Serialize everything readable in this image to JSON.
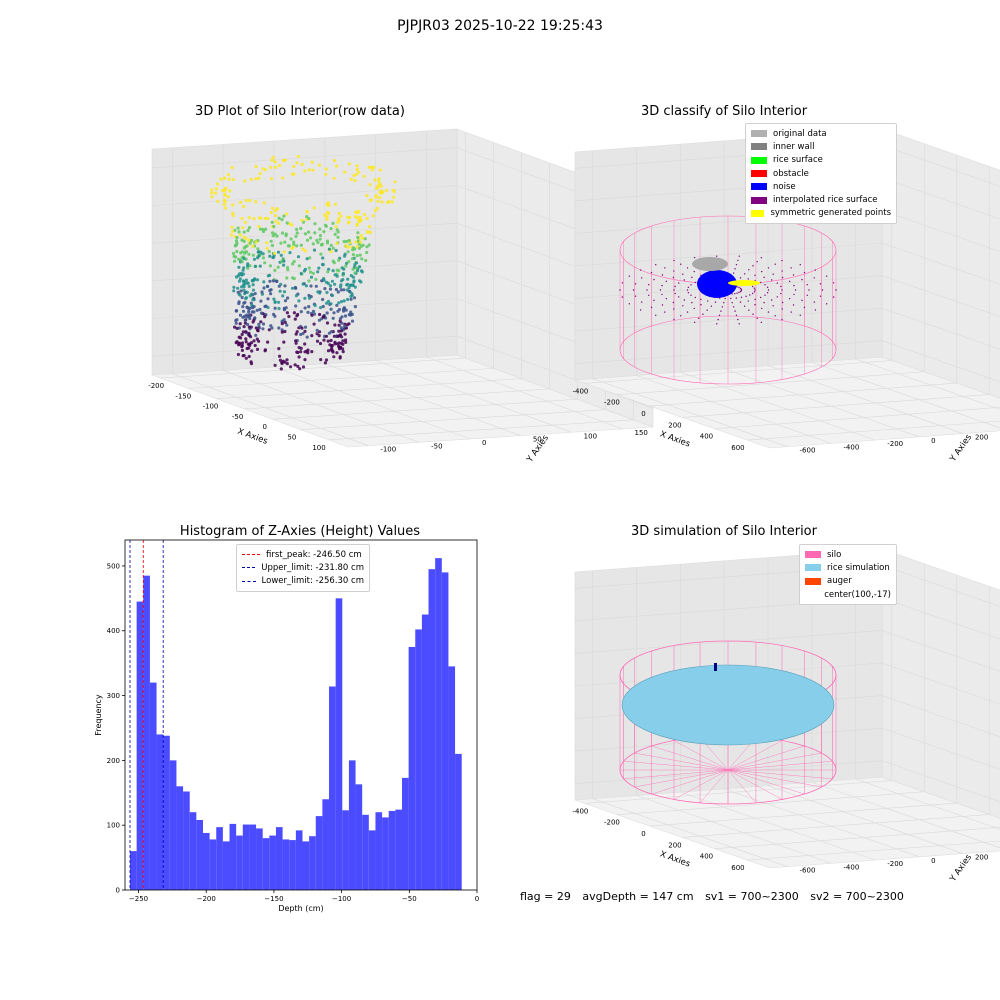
{
  "suptitle": "PJPJR03 2025-10-22 19:25:43",
  "chart_data": [
    {
      "type": "scatter",
      "title": "3D Plot of Silo Interior(row data)",
      "xlabel": "X Axies",
      "ylabel": "Y Axies",
      "zlabel": "Z Axies (Depth)",
      "xticks": [
        "-200",
        "-150",
        "-100",
        "-50",
        "0",
        "50",
        "100"
      ],
      "yticks": [
        "-100",
        "-50",
        "0",
        "50",
        "100",
        "150"
      ],
      "zticks": [
        "0",
        "-50",
        "-100",
        "-150",
        "-200",
        "-250"
      ],
      "xlim": [
        -200,
        120
      ],
      "ylim": [
        -120,
        160
      ],
      "zlim": [
        -270,
        0
      ],
      "colormap": "viridis",
      "colors": [
        "#440154",
        "#3b528b",
        "#21918c",
        "#5ec962",
        "#fde725"
      ]
    },
    {
      "type": "scatter",
      "title": "3D classify of Silo Interior",
      "xlabel": "X Axies",
      "ylabel": "Y Axies",
      "zlabel": "Z Axies (Depth)",
      "xticks": [
        "-400",
        "-200",
        "0",
        "200",
        "400",
        "600"
      ],
      "yticks": [
        "-600",
        "-400",
        "-200",
        "0",
        "200",
        "400",
        "600"
      ],
      "zticks": [
        "400",
        "200",
        "0",
        "-200",
        "-400",
        "-600",
        "-800"
      ],
      "legend": [
        {
          "name": "original data",
          "color": "#b0b0b0"
        },
        {
          "name": "inner wall",
          "color": "#808080"
        },
        {
          "name": "rice surface",
          "color": "#00ff00"
        },
        {
          "name": "obstacle",
          "color": "#ff0000"
        },
        {
          "name": "noise",
          "color": "#0000ff"
        },
        {
          "name": "interpolated rice surface",
          "color": "#800080"
        },
        {
          "name": "symmetric generated points",
          "color": "#ffff00"
        }
      ],
      "wall_color": "#ff69b4"
    },
    {
      "type": "bar",
      "title": "Histogram of Z-Axies (Height) Values",
      "xlabel": "Depth (cm)",
      "ylabel": "Frequency",
      "bar_color": "#4b4bff",
      "xlim": [
        -260,
        0
      ],
      "ylim": [
        0,
        540
      ],
      "xticks": [
        -250,
        -200,
        -150,
        -100,
        -50,
        0
      ],
      "xtick_labels": [
        "−250",
        "−200",
        "−150",
        "−100",
        "−50",
        "0"
      ],
      "yticks": [
        0,
        100,
        200,
        300,
        400,
        500
      ],
      "bin_start": -256.3,
      "bin_width": 4.9,
      "values": [
        60,
        445,
        485,
        320,
        240,
        238,
        200,
        160,
        152,
        120,
        108,
        88,
        78,
        97,
        75,
        102,
        84,
        101,
        101,
        95,
        80,
        84,
        97,
        78,
        77,
        92,
        75,
        83,
        114,
        140,
        314,
        450,
        123,
        200,
        163,
        116,
        92,
        120,
        112,
        122,
        124,
        173,
        375,
        402,
        425,
        495,
        512,
        490,
        345,
        210
      ],
      "vlines": [
        {
          "label": "first_peak: -246.50 cm",
          "x": -246.5,
          "color": "#ff0000"
        },
        {
          "label": "Upper_limit: -231.80 cm",
          "x": -231.8,
          "color": "#0000aa"
        },
        {
          "label": "Lower_limit: -256.30 cm",
          "x": -256.3,
          "color": "#0000aa"
        }
      ]
    },
    {
      "type": "scatter",
      "title": "3D simulation of Silo Interior",
      "xlabel": "X Axies",
      "ylabel": "Y Axies",
      "zlabel": "Z Axies (Depth)",
      "xticks": [
        "-400",
        "-200",
        "0",
        "200",
        "400",
        "600"
      ],
      "yticks": [
        "-600",
        "-400",
        "-200",
        "0",
        "200",
        "400",
        "600"
      ],
      "zticks": [
        "400",
        "200",
        "0",
        "-200",
        "-400",
        "-600",
        "-800"
      ],
      "legend": [
        {
          "name": "silo",
          "color": "#ff69b4"
        },
        {
          "name": "rice simulation",
          "color": "#87ceeb"
        },
        {
          "name": "auger",
          "color": "#ff4500"
        },
        {
          "name": "center(100,-17)",
          "color": ""
        }
      ]
    }
  ],
  "status": {
    "flag": "flag = 29",
    "avg": "avgDepth = 147 cm",
    "sv1": "sv1 = 700~2300",
    "sv2": "sv2 = 700~2300"
  }
}
